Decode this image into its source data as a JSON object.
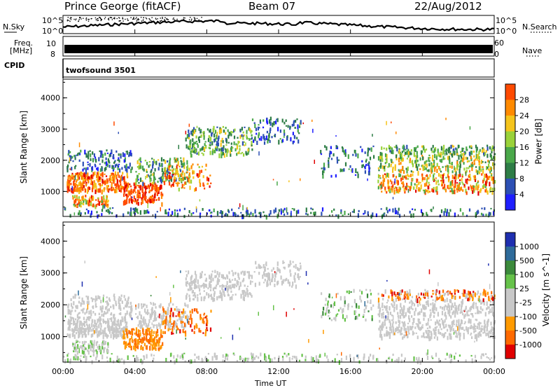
{
  "header": {
    "station": "Prince George (fitACF)",
    "beam": "Beam 07",
    "date": "22/Aug/2012"
  },
  "strip": {
    "nsky_label": "N.Sky",
    "nsky_ticks": [
      "10^5",
      "10^0"
    ],
    "nsearch_label": "N.Search",
    "nsearch_ticks": [
      "10^5",
      "10^0"
    ],
    "freq_label_1": "Freq.",
    "freq_label_2": "[MHz]",
    "freq_ticks": [
      "10",
      "8"
    ],
    "nave_label": "Nave",
    "nave_ticks": [
      "60",
      "0"
    ],
    "cpid_label": "CPID",
    "cpid_value": "twofsound 3501"
  },
  "colors": {
    "power_scale": [
      "#1f1fff",
      "#2d50b4",
      "#2e7d46",
      "#4aa84a",
      "#9ad23a",
      "#f5c41c",
      "#ff8a00",
      "#ff4a00",
      "#e00000"
    ],
    "velocity_scale": [
      "#1f2fb0",
      "#2e6b9a",
      "#3c8a3c",
      "#66c24a",
      "#c8c8c8",
      "#c8c8c8",
      "#ff9a00",
      "#ff6a00",
      "#e00000"
    ]
  },
  "chart_data": [
    {
      "type": "heatmap",
      "name_hint": "power",
      "ylabel": "Slant Range [km]",
      "xlabel": "",
      "x_ticks": [
        "00:00",
        "04:00",
        "08:00",
        "12:00",
        "16:00",
        "20:00",
        "00:00"
      ],
      "y_ticks": [
        "1000",
        "2000",
        "3000",
        "4000"
      ],
      "ylim": [
        200,
        4600
      ],
      "colorbar_label": "Power [dB]",
      "colorbar_ticks": [
        "4",
        "8",
        "12",
        "16",
        "20",
        "24",
        "28"
      ],
      "colorbar_range": [
        0,
        30
      ]
    },
    {
      "type": "heatmap",
      "name_hint": "velocity",
      "ylabel": "Slant Range [km]",
      "xlabel": "Time UT",
      "x_ticks": [
        "00:00",
        "04:00",
        "08:00",
        "12:00",
        "16:00",
        "20:00",
        "00:00"
      ],
      "y_ticks": [
        "1000",
        "2000",
        "3000",
        "4000"
      ],
      "ylim": [
        200,
        4600
      ],
      "colorbar_label": "Velocity [m s^-1]",
      "colorbar_ticks": [
        "1000",
        "500",
        "100",
        "25",
        "-25",
        "-100",
        "-500",
        "-1000"
      ]
    }
  ]
}
